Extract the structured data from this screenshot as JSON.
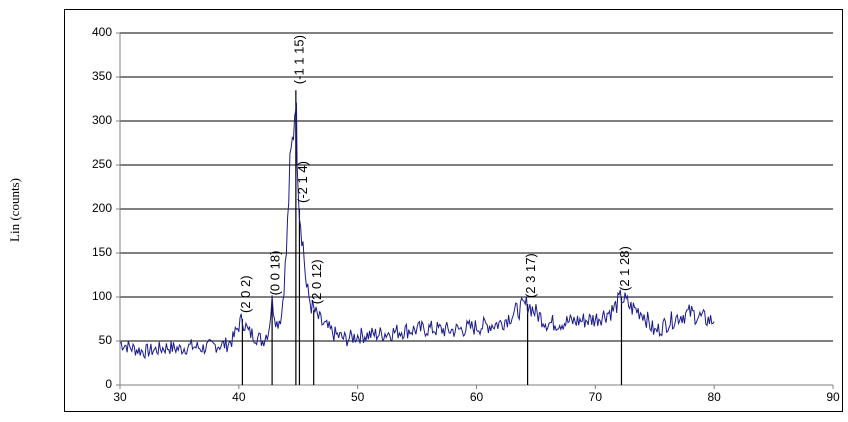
{
  "chart_data": {
    "type": "line",
    "title": "",
    "xlabel": "",
    "ylabel": "Lin (counts)",
    "xlim": [
      30,
      90
    ],
    "ylim": [
      0,
      400
    ],
    "x_ticks": [
      30,
      40,
      50,
      60,
      70,
      80,
      90
    ],
    "y_ticks": [
      0,
      50,
      100,
      150,
      200,
      250,
      300,
      350,
      400
    ],
    "grid": "horizontal",
    "legend": "none",
    "colors": {
      "line": "#1a1a8c",
      "grid": "#000000",
      "axis": "#808080",
      "text": "#000000"
    },
    "series": [
      {
        "x": [
          30,
          31,
          32,
          33,
          34,
          35,
          36,
          37,
          38,
          39,
          39.5,
          40,
          40.3,
          40.8,
          41.5,
          42,
          42.5,
          42.8,
          43.2,
          43.6,
          44,
          44.3,
          44.6,
          44.8,
          44.9,
          45.1,
          45.4,
          45.7,
          46.1,
          46.5,
          47,
          48,
          49,
          50,
          52,
          54,
          56,
          58,
          60,
          62,
          63.5,
          64.3,
          65,
          66,
          68,
          70,
          71.5,
          72.2,
          73,
          74,
          75,
          76,
          77,
          78,
          79,
          80
        ],
        "y": [
          48,
          42,
          38,
          40,
          43,
          41,
          44,
          42,
          45,
          46,
          52,
          68,
          75,
          60,
          55,
          50,
          62,
          95,
          70,
          80,
          150,
          245,
          290,
          335,
          270,
          200,
          160,
          110,
          90,
          80,
          70,
          58,
          52,
          56,
          58,
          62,
          64,
          62,
          66,
          70,
          85,
          92,
          82,
          70,
          72,
          75,
          85,
          100,
          88,
          82,
          60,
          70,
          78,
          82,
          76,
          72
        ]
      }
    ],
    "peaks": [
      {
        "label": "(2 0 2)",
        "x": 40.3,
        "y": 75
      },
      {
        "label": "(0 0 18)",
        "x": 42.8,
        "y": 95
      },
      {
        "label": "(-1 1 15)",
        "x": 44.8,
        "y": 335
      },
      {
        "label": "(-2 1 4)",
        "x": 45.1,
        "y": 200
      },
      {
        "label": "(2 0 12)",
        "x": 46.3,
        "y": 85
      },
      {
        "label": "(2 3 17)",
        "x": 64.3,
        "y": 92
      },
      {
        "label": "(2 1 28)",
        "x": 72.2,
        "y": 100
      }
    ]
  }
}
